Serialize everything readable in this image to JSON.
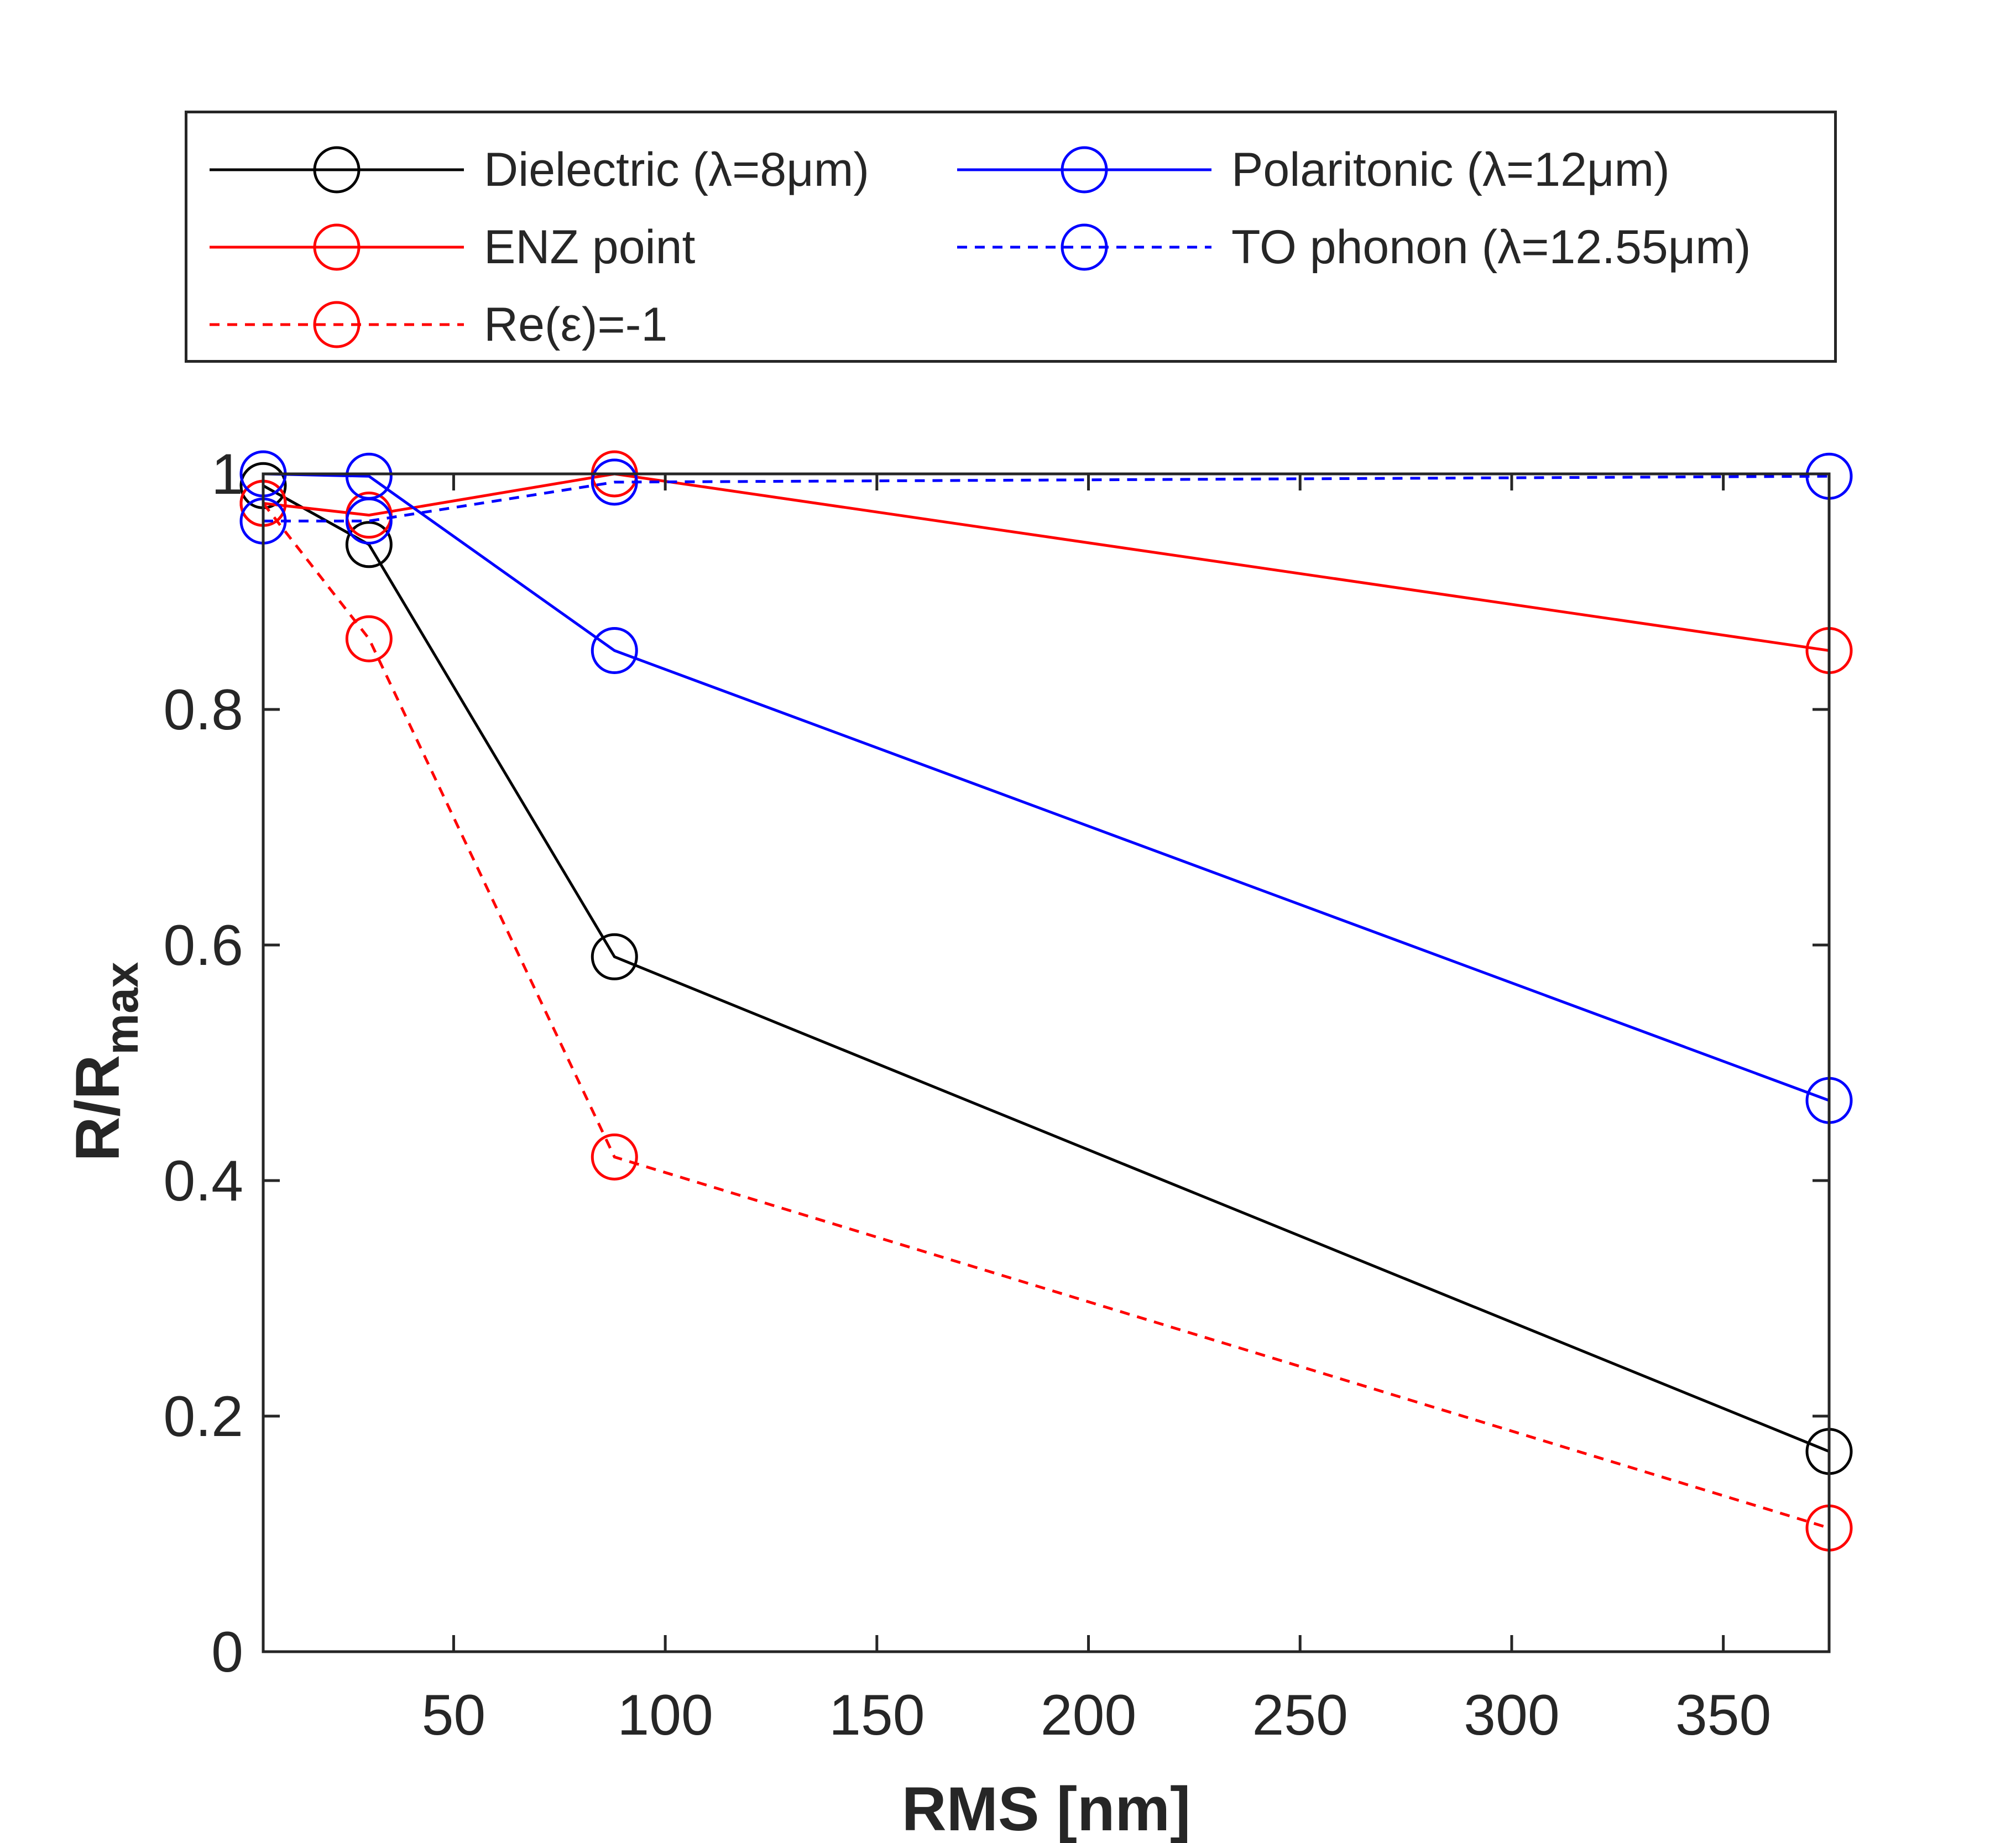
{
  "chart_data": {
    "type": "line",
    "xlabel": "RMS [nm]",
    "ylabel": "R/R",
    "ylabel_subscript": "max",
    "xlim": [
      5,
      375
    ],
    "ylim": [
      0,
      1
    ],
    "xticks": [
      50,
      100,
      150,
      200,
      250,
      300,
      350
    ],
    "yticks": [
      0,
      0.2,
      0.4,
      0.6,
      0.8,
      1
    ],
    "ytick_labels": [
      "0",
      "0.2",
      "0.4",
      "0.6",
      "0.8",
      "1"
    ],
    "x": [
      5,
      30,
      88,
      375
    ],
    "series": [
      {
        "name": "Dielectric (λ=8μm)",
        "color": "#000000",
        "dash": "solid",
        "values": [
          0.99,
          0.94,
          0.59,
          0.17
        ]
      },
      {
        "name": "ENZ point",
        "color": "#ff0000",
        "dash": "solid",
        "values": [
          0.975,
          0.965,
          1.0,
          0.85
        ]
      },
      {
        "name": "Re(ε)=-1",
        "color": "#ff0000",
        "dash": "dashed",
        "values": [
          0.975,
          0.86,
          0.42,
          0.105
        ]
      },
      {
        "name": "Polaritonic (λ=12μm)",
        "color": "#0000ff",
        "dash": "solid",
        "values": [
          1.0,
          0.998,
          0.85,
          0.468
        ]
      },
      {
        "name": "TO phonon (λ=12.55μm)",
        "color": "#0000ff",
        "dash": "dashed",
        "values": [
          0.96,
          0.96,
          0.993,
          0.998
        ]
      }
    ],
    "legend": {
      "position": "top",
      "columns": 2,
      "labels": [
        "Dielectric (λ=8μm)",
        "ENZ point",
        "Re(ε)=-1",
        "Polaritonic (λ=12μm)",
        "TO phonon (λ=12.55μm)"
      ]
    }
  }
}
